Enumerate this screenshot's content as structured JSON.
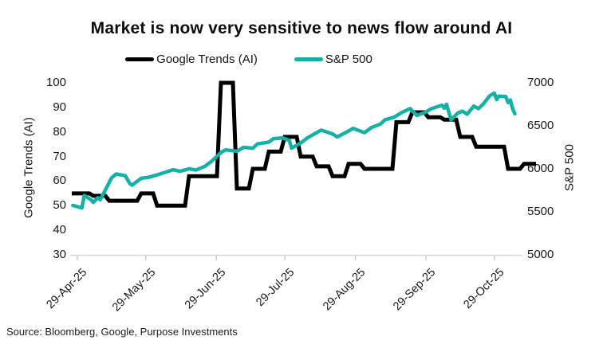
{
  "chart_data": {
    "type": "line",
    "title": "Market is now very sensitive to news flow around AI",
    "source": "Source: Bloomberg, Google, Purpose Investments",
    "legend_position": "top-center",
    "grid": false,
    "x_axis": {
      "tick_labels": [
        "29-Apr-25",
        "29-May-25",
        "29-Jun-25",
        "29-Jul-25",
        "29-Aug-25",
        "29-Sep-25",
        "29-Oct-25"
      ],
      "tick_day_offsets": [
        0,
        30,
        61,
        91,
        122,
        153,
        183
      ],
      "start_date": "29-Apr-25"
    },
    "left_axis": {
      "label": "Google Trends (AI)",
      "min": 30,
      "max": 100,
      "ticks": [
        100,
        90,
        80,
        70,
        60,
        50,
        40,
        30
      ]
    },
    "right_axis": {
      "label": "S&P 500",
      "min": 5000,
      "max": 7000,
      "ticks": [
        7000,
        6500,
        6000,
        5500,
        5000
      ]
    },
    "series": [
      {
        "name": "Google Trends (AI)",
        "axis": "left",
        "color": "#000000",
        "style": "step",
        "dates": [
          "29-Apr-25",
          "06-May-25",
          "13-May-25",
          "20-May-25",
          "27-May-25",
          "03-Jun-25",
          "10-Jun-25",
          "17-Jun-25",
          "24-Jun-25",
          "01-Jul-25",
          "08-Jul-25",
          "15-Jul-25",
          "22-Jul-25",
          "29-Jul-25",
          "05-Aug-25",
          "12-Aug-25",
          "19-Aug-25",
          "26-Aug-25",
          "02-Sep-25",
          "09-Sep-25",
          "16-Sep-25",
          "23-Sep-25",
          "30-Sep-25",
          "07-Oct-25",
          "14-Oct-25",
          "21-Oct-25",
          "28-Oct-25",
          "04-Nov-25",
          "11-Nov-25"
        ],
        "day_offsets": [
          0,
          7,
          14,
          21,
          28,
          35,
          42,
          49,
          56,
          63,
          70,
          77,
          84,
          91,
          98,
          105,
          112,
          119,
          126,
          133,
          140,
          147,
          154,
          161,
          168,
          175,
          182,
          189,
          196
        ],
        "values": [
          55,
          54,
          52,
          52,
          55,
          50,
          50,
          62,
          62,
          100,
          57,
          65,
          72,
          78,
          70,
          66,
          62,
          67,
          65,
          65,
          84,
          88,
          86,
          85,
          78,
          74,
          74,
          65,
          67
        ]
      },
      {
        "name": "S&P 500",
        "axis": "right",
        "color": "#14b1a4",
        "style": "line",
        "dates": [
          "27-Apr-25",
          "29-Apr-25",
          "01-May-25",
          "02-May-25",
          "05-May-25",
          "06-May-25",
          "08-May-25",
          "09-May-25",
          "12-May-25",
          "14-May-25",
          "16-May-25",
          "20-May-25",
          "22-May-25",
          "23-May-25",
          "27-May-25",
          "30-May-25",
          "03-Jun-25",
          "06-Jun-25",
          "10-Jun-25",
          "13-Jun-25",
          "17-Jun-25",
          "20-Jun-25",
          "24-Jun-25",
          "27-Jun-25",
          "01-Jul-25",
          "03-Jul-25",
          "08-Jul-25",
          "11-Jul-25",
          "15-Jul-25",
          "17-Jul-25",
          "22-Jul-25",
          "24-Jul-25",
          "28-Jul-25",
          "31-Jul-25",
          "01-Aug-25",
          "05-Aug-25",
          "08-Aug-25",
          "12-Aug-25",
          "14-Aug-25",
          "19-Aug-25",
          "21-Aug-25",
          "26-Aug-25",
          "28-Aug-25",
          "02-Sep-25",
          "05-Sep-25",
          "09-Sep-25",
          "11-Sep-25",
          "15-Sep-25",
          "18-Sep-25",
          "22-Sep-25",
          "25-Sep-25",
          "29-Sep-25",
          "01-Oct-25",
          "06-Oct-25",
          "07-Oct-25",
          "08-Oct-25",
          "10-Oct-25",
          "13-Oct-25",
          "15-Oct-25",
          "17-Oct-25",
          "20-Oct-25",
          "22-Oct-25",
          "24-Oct-25",
          "27-Oct-25",
          "29-Oct-25",
          "30-Oct-25",
          "31-Oct-25",
          "03-Nov-25",
          "04-Nov-25",
          "05-Nov-25",
          "06-Nov-25",
          "07-Nov-25"
        ],
        "day_offsets": [
          -2,
          0,
          2,
          3,
          6,
          7,
          9,
          10,
          13,
          15,
          17,
          21,
          23,
          24,
          28,
          31,
          35,
          38,
          42,
          45,
          49,
          52,
          56,
          59,
          63,
          65,
          70,
          73,
          77,
          79,
          84,
          86,
          90,
          93,
          94,
          98,
          101,
          105,
          107,
          112,
          114,
          119,
          121,
          126,
          129,
          133,
          135,
          139,
          142,
          146,
          149,
          153,
          155,
          160,
          161,
          162,
          164,
          167,
          169,
          171,
          174,
          176,
          178,
          181,
          183,
          184,
          185,
          188,
          189,
          190,
          191,
          192
        ],
        "values": [
          5575,
          5560,
          5545,
          5690,
          5640,
          5610,
          5665,
          5640,
          5790,
          5895,
          5940,
          5920,
          5830,
          5810,
          5890,
          5900,
          5930,
          5955,
          5990,
          5970,
          6000,
          5985,
          6030,
          6090,
          6190,
          6220,
          6205,
          6250,
          6240,
          6290,
          6310,
          6350,
          6360,
          6330,
          6240,
          6300,
          6360,
          6420,
          6450,
          6405,
          6370,
          6440,
          6470,
          6420,
          6480,
          6520,
          6570,
          6600,
          6650,
          6700,
          6620,
          6660,
          6695,
          6740,
          6705,
          6750,
          6570,
          6650,
          6670,
          6635,
          6730,
          6700,
          6750,
          6850,
          6880,
          6805,
          6845,
          6840,
          6770,
          6800,
          6700,
          6640
        ]
      }
    ]
  }
}
